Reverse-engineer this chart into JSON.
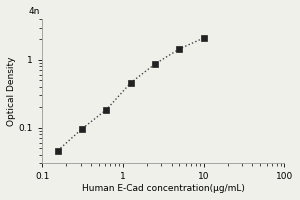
{
  "x_values": [
    0.156,
    0.313,
    0.625,
    1.25,
    2.5,
    5.0,
    10.0
  ],
  "y_values": [
    0.046,
    0.097,
    0.185,
    0.46,
    0.87,
    1.45,
    2.1
  ],
  "xlabel": "Human E-Cad concentration(μg/mL)",
  "ylabel": "Optical Density",
  "xlim": [
    0.1,
    100
  ],
  "ylim": [
    0.03,
    4
  ],
  "y_top_label": "4n",
  "marker": "s",
  "marker_size": 4,
  "line_style": ":",
  "line_color": "#444444",
  "marker_color": "#222222",
  "background_color": "#f0f0ea",
  "axis_label_fontsize": 6.5,
  "tick_fontsize": 6.5
}
